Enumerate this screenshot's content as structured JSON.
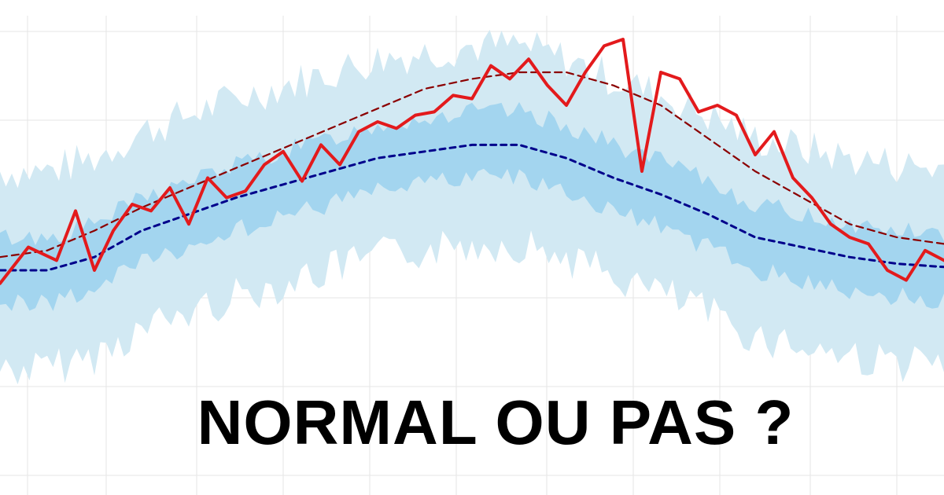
{
  "headline": "NORMAL OU PAS ?",
  "colors": {
    "observed": "#e31a1c",
    "normal_mean": "#00008b",
    "record_trend": "#8b0000",
    "band_outer": "#d2e9f3",
    "band_inner": "#a3d5ef",
    "grid": "#e6e6e6"
  },
  "chart_data": {
    "type": "line",
    "grid": true,
    "legend": "none",
    "x_range": [
      0,
      1
    ],
    "y_range": [
      0,
      1
    ],
    "series": [
      {
        "role": "observed",
        "style": "solid",
        "color": "#e31a1c",
        "x": [
          0,
          0.03,
          0.06,
          0.08,
          0.1,
          0.12,
          0.14,
          0.16,
          0.18,
          0.2,
          0.22,
          0.24,
          0.26,
          0.28,
          0.3,
          0.32,
          0.34,
          0.36,
          0.38,
          0.4,
          0.42,
          0.44,
          0.46,
          0.48,
          0.5,
          0.52,
          0.54,
          0.56,
          0.58,
          0.6,
          0.62,
          0.64,
          0.66,
          0.68,
          0.7,
          0.72,
          0.74,
          0.76,
          0.78,
          0.8,
          0.82,
          0.84,
          0.86,
          0.88,
          0.9,
          0.92,
          0.94,
          0.96,
          0.98,
          1.0
        ],
        "y": [
          0.26,
          0.37,
          0.33,
          0.48,
          0.3,
          0.42,
          0.5,
          0.48,
          0.55,
          0.44,
          0.58,
          0.52,
          0.54,
          0.62,
          0.66,
          0.57,
          0.68,
          0.62,
          0.72,
          0.75,
          0.73,
          0.77,
          0.78,
          0.83,
          0.82,
          0.92,
          0.88,
          0.94,
          0.86,
          0.8,
          0.9,
          0.98,
          1.0,
          0.6,
          0.9,
          0.88,
          0.78,
          0.8,
          0.77,
          0.65,
          0.72,
          0.58,
          0.52,
          0.44,
          0.4,
          0.38,
          0.3,
          0.27,
          0.36,
          0.33
        ]
      },
      {
        "role": "normal",
        "style": "dotted",
        "color": "#00008b",
        "x": [
          0,
          0.05,
          0.1,
          0.15,
          0.2,
          0.25,
          0.3,
          0.35,
          0.4,
          0.45,
          0.5,
          0.55,
          0.6,
          0.65,
          0.7,
          0.75,
          0.8,
          0.85,
          0.9,
          0.95,
          1.0
        ],
        "y": [
          0.3,
          0.3,
          0.34,
          0.42,
          0.47,
          0.52,
          0.56,
          0.6,
          0.64,
          0.66,
          0.68,
          0.68,
          0.64,
          0.58,
          0.53,
          0.47,
          0.4,
          0.37,
          0.34,
          0.32,
          0.31
        ]
      },
      {
        "role": "record",
        "style": "dashed",
        "color": "#8b0000",
        "x": [
          0,
          0.05,
          0.1,
          0.15,
          0.2,
          0.25,
          0.3,
          0.35,
          0.4,
          0.45,
          0.5,
          0.55,
          0.6,
          0.65,
          0.7,
          0.75,
          0.8,
          0.85,
          0.9,
          0.95,
          1.0
        ],
        "y": [
          0.34,
          0.36,
          0.42,
          0.49,
          0.55,
          0.61,
          0.67,
          0.73,
          0.79,
          0.85,
          0.88,
          0.9,
          0.9,
          0.86,
          0.8,
          0.7,
          0.6,
          0.52,
          0.44,
          0.4,
          0.38
        ]
      }
    ]
  }
}
